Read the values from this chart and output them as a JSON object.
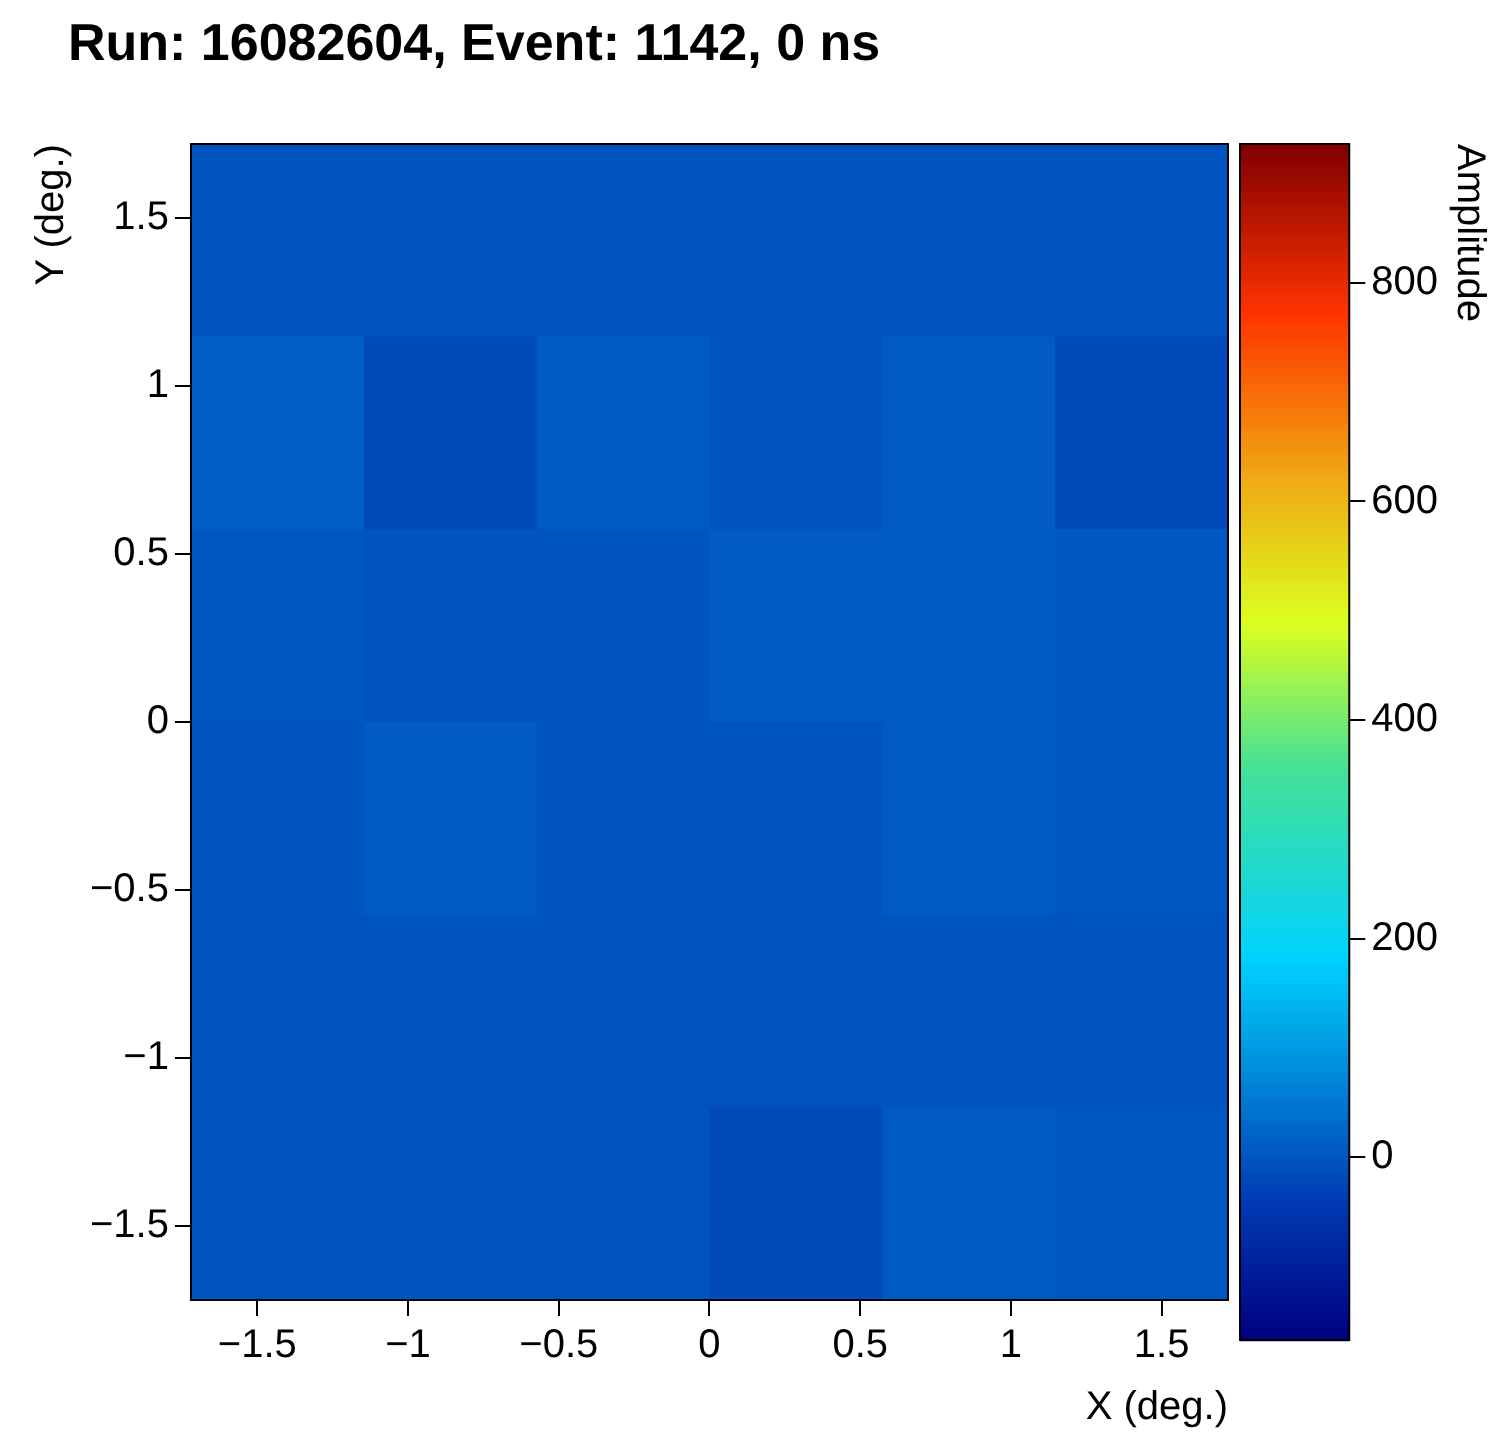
{
  "chart_data": {
    "type": "heatmap",
    "title": "Run: 16082604, Event: 1142, 0 ns",
    "xlabel": "X (deg.)",
    "ylabel": "Y (deg.)",
    "clabel": "Amplitude",
    "xlim": [
      -1.72,
      1.72
    ],
    "ylim": [
      -1.72,
      1.72
    ],
    "xticks": [
      {
        "value": -1.5,
        "label": "−1.5"
      },
      {
        "value": -1,
        "label": "−1"
      },
      {
        "value": -0.5,
        "label": "−0.5"
      },
      0,
      0.5,
      1,
      1.5
    ],
    "yticks": [
      {
        "value": -1.5,
        "label": "−1.5"
      },
      {
        "value": -1,
        "label": "−1"
      },
      {
        "value": -0.5,
        "label": "−0.5"
      },
      0,
      0.5,
      1,
      1.5
    ],
    "cells": [
      [
        0,
        0,
        0,
        0,
        0,
        0
      ],
      [
        15,
        -15,
        10,
        0,
        10,
        -15
      ],
      [
        3,
        0,
        0,
        10,
        8,
        5
      ],
      [
        0,
        10,
        0,
        0,
        8,
        3
      ],
      [
        0,
        0,
        0,
        0,
        0,
        0
      ],
      [
        0,
        0,
        0,
        -15,
        8,
        3
      ]
    ],
    "clim": [
      -167,
      927
    ],
    "cticks": [
      0,
      200,
      400,
      600,
      800
    ]
  }
}
